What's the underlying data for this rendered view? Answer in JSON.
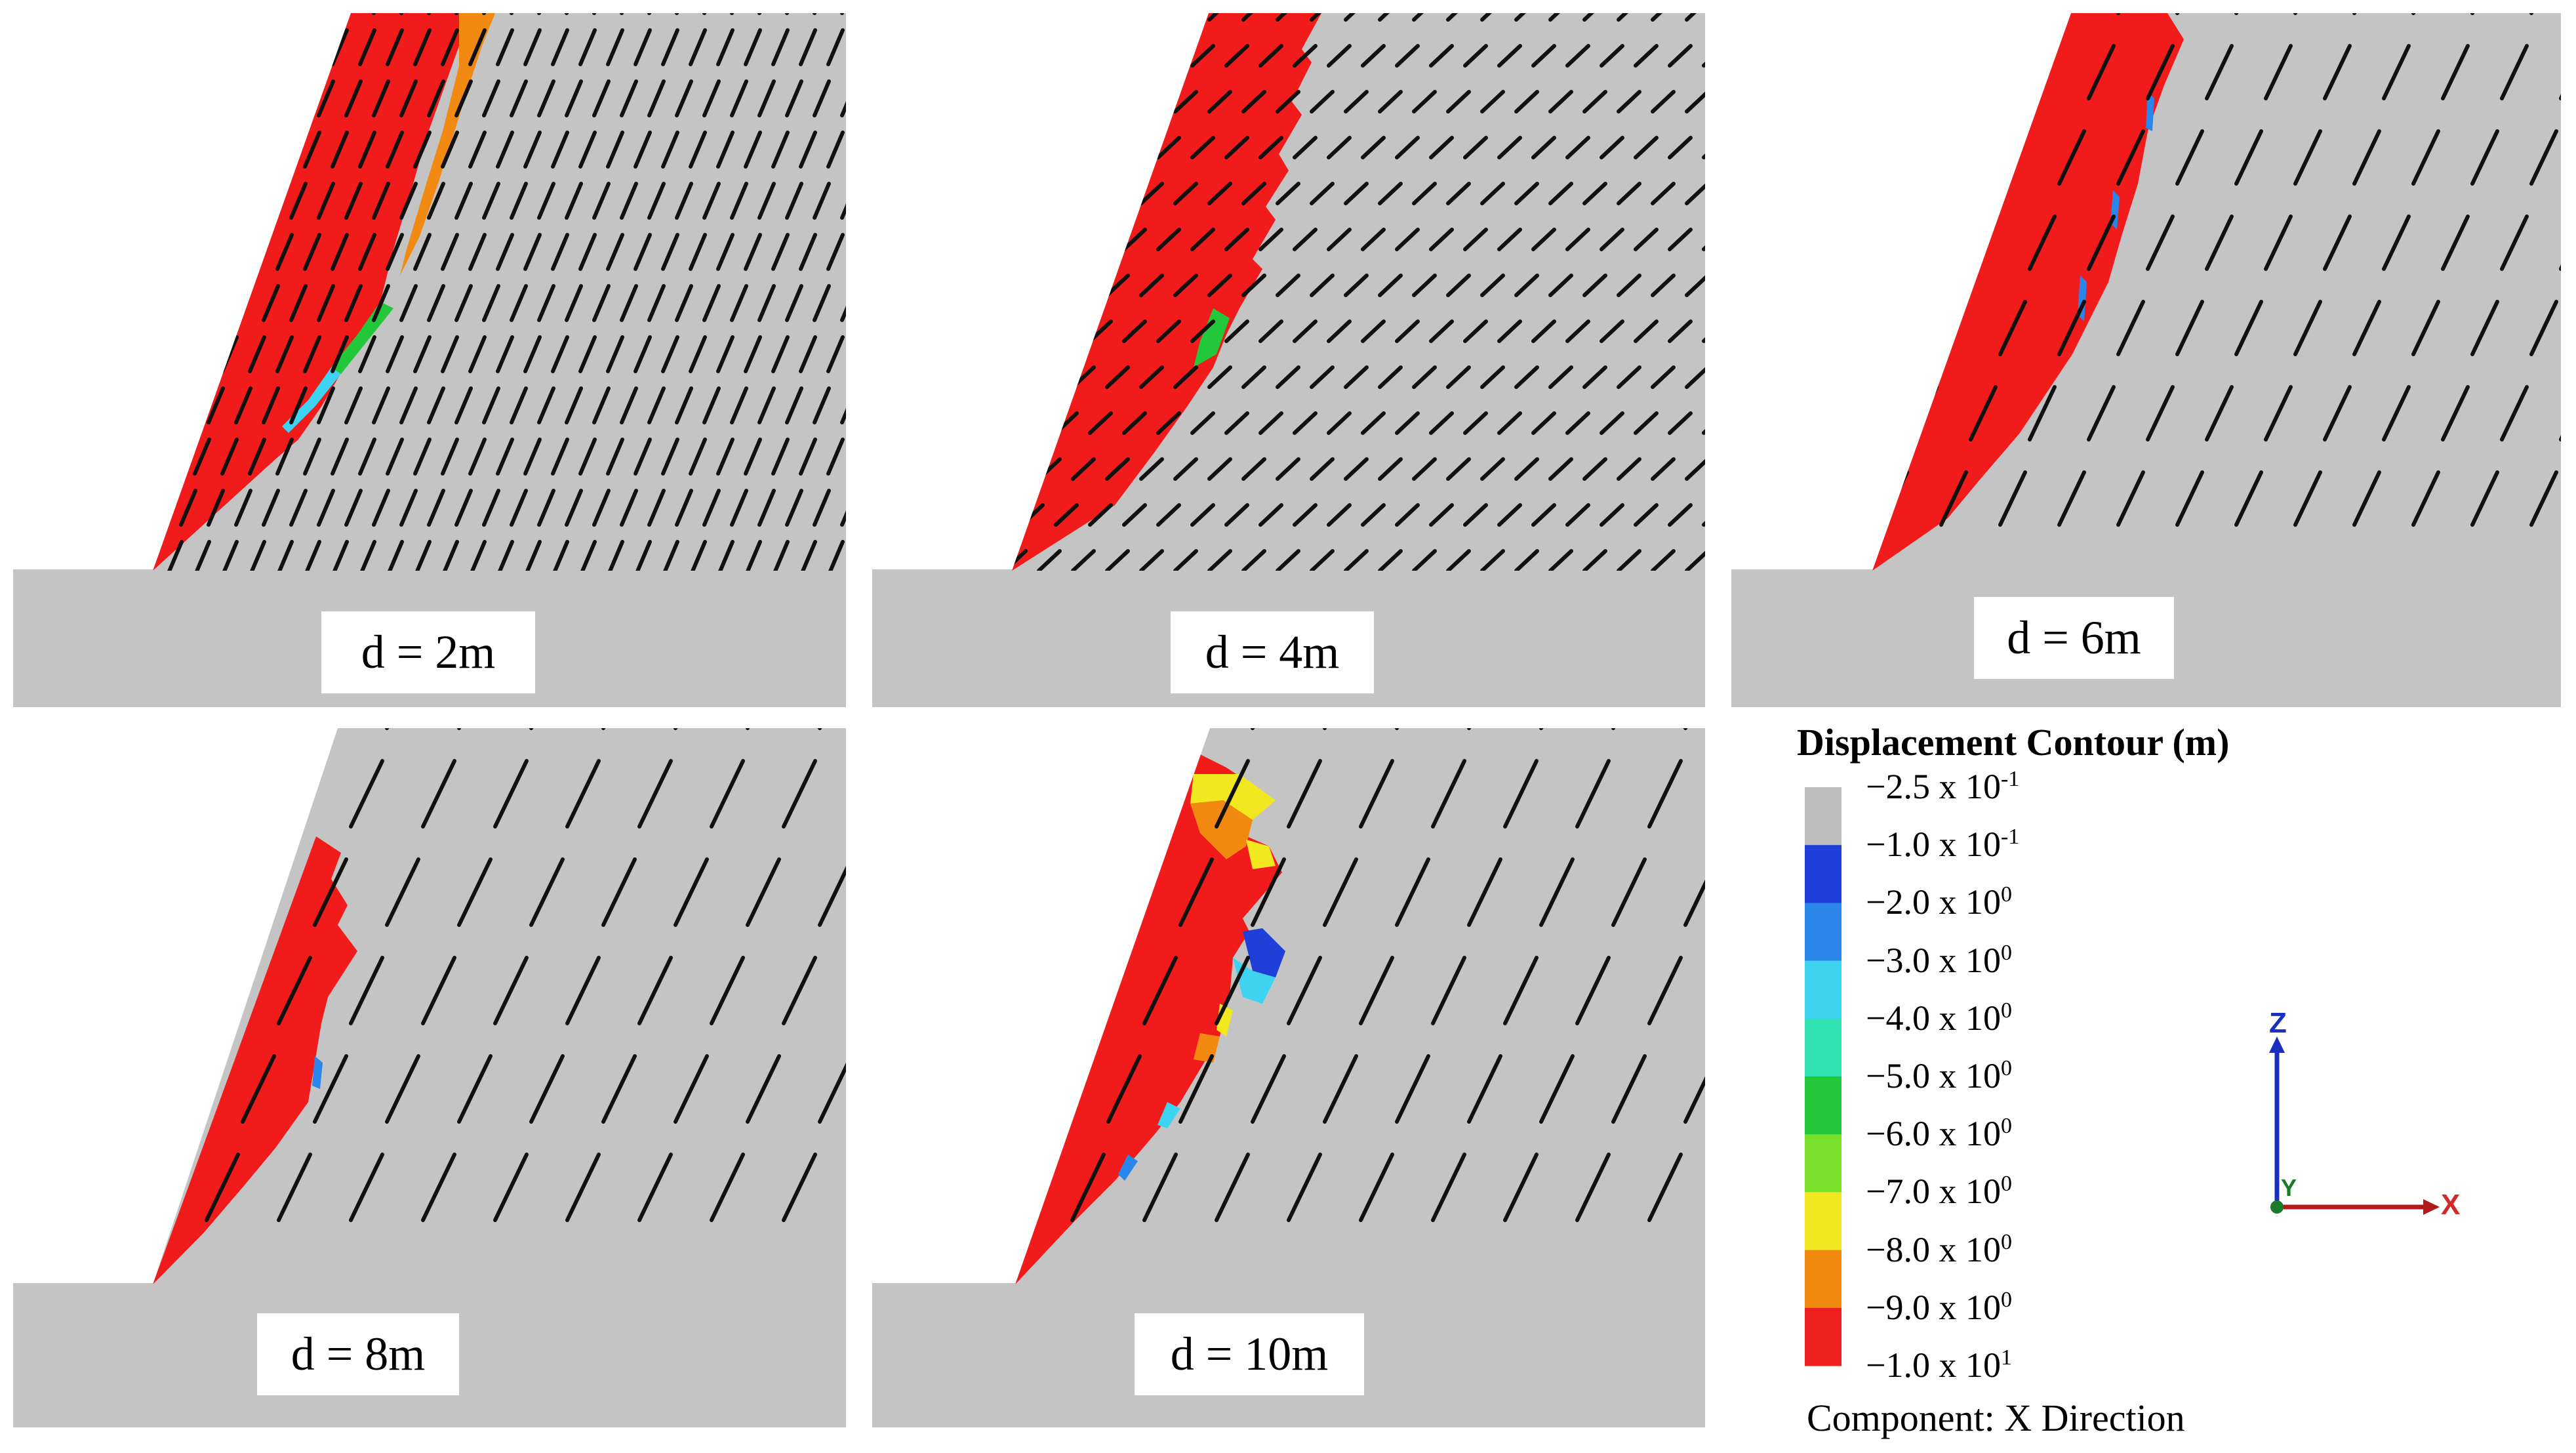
{
  "panels": [
    {
      "label": "d = 2m"
    },
    {
      "label": "d = 4m"
    },
    {
      "label": "d = 6m"
    },
    {
      "label": "d = 8m"
    },
    {
      "label": "d = 10m"
    }
  ],
  "legend": {
    "title": "Displacement Contour (m)",
    "labels": [
      {
        "mantissa": "−2.5 x 10",
        "exp": "-1"
      },
      {
        "mantissa": "−1.0 x 10",
        "exp": "-1"
      },
      {
        "mantissa": "−2.0 x 10",
        "exp": "0"
      },
      {
        "mantissa": "−3.0 x 10",
        "exp": "0"
      },
      {
        "mantissa": "−4.0 x 10",
        "exp": "0"
      },
      {
        "mantissa": "−5.0 x 10",
        "exp": "0"
      },
      {
        "mantissa": "−6.0 x 10",
        "exp": "0"
      },
      {
        "mantissa": "−7.0 x 10",
        "exp": "0"
      },
      {
        "mantissa": "−8.0 x 10",
        "exp": "0"
      },
      {
        "mantissa": "−9.0 x 10",
        "exp": "0"
      },
      {
        "mantissa": "−1.0 x 10",
        "exp": "1"
      }
    ],
    "colors": [
      "#bdbdbd",
      "#1f3fd8",
      "#2a86e8",
      "#3fd3f2",
      "#2fe0b0",
      "#22c83a",
      "#7be02a",
      "#f2e81f",
      "#f28a12",
      "#f02020"
    ],
    "component": "Component:  X Direction"
  },
  "axes": {
    "z_label": "Z",
    "y_label": "Y",
    "x_label": "X"
  },
  "colors": {
    "rock": "#c4c4c4",
    "failed": "#f21b1b",
    "orange": "#f28a12",
    "joint": "#111111"
  }
}
